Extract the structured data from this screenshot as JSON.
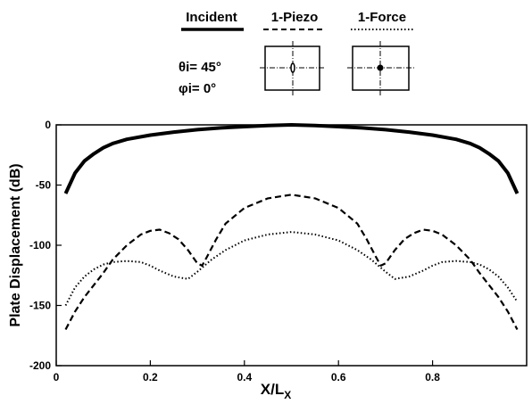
{
  "legend": {
    "entries": [
      {
        "label": "Incident",
        "style": "solid"
      },
      {
        "label": "1-Piezo",
        "style": "dashed"
      },
      {
        "label": "1-Force",
        "style": "dotted"
      }
    ],
    "theta_label": "θi= 45°",
    "phi_label": "φi= 0°"
  },
  "chart_data": {
    "type": "line",
    "title": "",
    "xlabel": "X/Lx",
    "ylabel": "Plate Displacement (dB)",
    "xlim": [
      0,
      1
    ],
    "ylim": [
      -200,
      0
    ],
    "xticks": [
      0,
      0.2,
      0.4,
      0.6,
      0.8
    ],
    "xtick_labels": [
      "0",
      "0.2",
      "0.4",
      "0.6",
      "0.8"
    ],
    "yticks": [
      0,
      -50,
      -100,
      -150,
      -200
    ],
    "ytick_labels": [
      "0",
      "-50",
      "-100",
      "-150",
      "-200"
    ],
    "grid": false,
    "legend_position": "top",
    "series": [
      {
        "name": "Incident",
        "style": "solid",
        "x": [
          0.02,
          0.04,
          0.06,
          0.08,
          0.1,
          0.12,
          0.15,
          0.2,
          0.25,
          0.3,
          0.35,
          0.4,
          0.45,
          0.5,
          0.55,
          0.6,
          0.65,
          0.7,
          0.75,
          0.8,
          0.85,
          0.88,
          0.9,
          0.92,
          0.94,
          0.96,
          0.98
        ],
        "values": [
          -57,
          -40,
          -30,
          -24,
          -19,
          -15.5,
          -12,
          -8.5,
          -6,
          -4,
          -2.5,
          -1.5,
          -0.5,
          0,
          -0.5,
          -1.5,
          -2.5,
          -4,
          -6,
          -8.5,
          -12,
          -15.5,
          -19,
          -24,
          -30,
          -40,
          -57
        ]
      },
      {
        "name": "1-Piezo",
        "style": "dashed",
        "x": [
          0.02,
          0.04,
          0.06,
          0.08,
          0.1,
          0.12,
          0.15,
          0.18,
          0.2,
          0.22,
          0.24,
          0.26,
          0.28,
          0.3,
          0.31,
          0.32,
          0.34,
          0.36,
          0.4,
          0.45,
          0.5,
          0.55,
          0.6,
          0.64,
          0.66,
          0.68,
          0.69,
          0.7,
          0.72,
          0.74,
          0.76,
          0.78,
          0.8,
          0.82,
          0.85,
          0.88,
          0.9,
          0.92,
          0.94,
          0.96,
          0.98
        ],
        "values": [
          -170,
          -155,
          -143,
          -133,
          -123,
          -112,
          -100,
          -91,
          -88,
          -87,
          -90,
          -95,
          -104,
          -115,
          -117,
          -110,
          -95,
          -82,
          -69,
          -61,
          -58,
          -61,
          -69,
          -82,
          -95,
          -110,
          -117,
          -115,
          -104,
          -95,
          -90,
          -87,
          -88,
          -91,
          -100,
          -112,
          -123,
          -133,
          -143,
          -155,
          -170
        ]
      },
      {
        "name": "1-Force",
        "style": "dotted",
        "x": [
          0.02,
          0.04,
          0.06,
          0.08,
          0.1,
          0.12,
          0.15,
          0.18,
          0.2,
          0.22,
          0.25,
          0.28,
          0.3,
          0.33,
          0.36,
          0.4,
          0.45,
          0.5,
          0.55,
          0.6,
          0.64,
          0.67,
          0.7,
          0.72,
          0.75,
          0.78,
          0.8,
          0.82,
          0.85,
          0.88,
          0.9,
          0.92,
          0.94,
          0.96,
          0.98
        ],
        "values": [
          -150,
          -135,
          -126,
          -120,
          -116,
          -114,
          -113,
          -114,
          -117,
          -121,
          -126,
          -128,
          -122,
          -112,
          -104,
          -96,
          -91,
          -89,
          -91,
          -96,
          -104,
          -112,
          -122,
          -128,
          -126,
          -121,
          -117,
          -114,
          -113,
          -114,
          -116,
          -120,
          -126,
          -135,
          -147
        ]
      }
    ]
  }
}
